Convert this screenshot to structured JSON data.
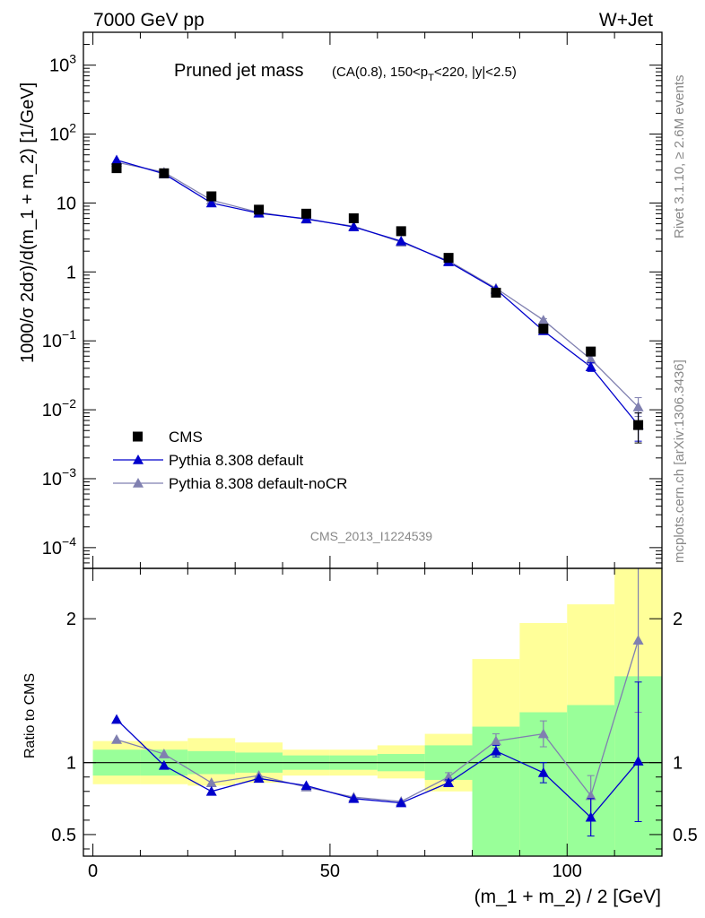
{
  "header": {
    "left": "7000 GeV pp",
    "right": "W+Jet"
  },
  "side": {
    "rivet": "Rivet 3.1.10, ≥ 2.6M events",
    "mcplots": "mcplots.cern.ch [arXiv:1306.3436]"
  },
  "chart_data": [
    {
      "type": "scatter",
      "title_main": "Pruned jet mass",
      "title_sub": "(CA(0.8), 150<p_T<220, |y|<2.5)",
      "title_sub_parts": {
        "a": "(CA(0.8), 150<p",
        "sub": "T",
        "b": "<220, |y|<2.5)"
      },
      "watermark": "CMS_2013_I1224539",
      "ylabel": "1000/σ 2dσ)/d(m_1 + m_2) [1/GeV]",
      "yscale": "log",
      "ylim": [
        5e-05,
        3000
      ],
      "xlim": [
        -2,
        120
      ],
      "ytick_labels": {
        "e3": {
          "base": "10",
          "exp": "3"
        },
        "e2": {
          "base": "10",
          "exp": "2"
        },
        "p10": "10",
        "p1": "1",
        "em1": {
          "base": "10",
          "exp": "−1"
        },
        "em2": {
          "base": "10",
          "exp": "−2"
        },
        "em3": {
          "base": "10",
          "exp": "−3"
        },
        "em4": {
          "base": "10",
          "exp": "−4"
        }
      },
      "x": [
        5,
        15,
        25,
        35,
        45,
        55,
        65,
        75,
        85,
        95,
        105,
        115
      ],
      "series": [
        {
          "name": "CMS",
          "style": "square",
          "color": "#000000",
          "values": [
            32,
            27,
            12.5,
            8,
            7,
            6,
            3.9,
            1.6,
            0.5,
            0.15,
            0.07,
            0.006
          ],
          "err_low": [
            0,
            0,
            0,
            0,
            0,
            0,
            0,
            0,
            0,
            0,
            0,
            0.0027
          ],
          "err_high": [
            0,
            0,
            0,
            0,
            0,
            0,
            0,
            0,
            0,
            0,
            0,
            0.003
          ]
        },
        {
          "name": "Pythia 8.308 default",
          "style": "triangle-line",
          "color": "#0000cc",
          "values": [
            42,
            26.5,
            10,
            7.1,
            5.9,
            4.5,
            2.8,
            1.4,
            0.56,
            0.14,
            0.042,
            0.006
          ],
          "err_low": [
            0,
            0,
            0,
            0,
            0,
            0,
            0,
            0,
            0,
            0,
            0.006,
            0.0025
          ],
          "err_high": [
            0,
            0,
            0,
            0,
            0,
            0,
            0,
            0,
            0,
            0,
            0.006,
            0.003
          ]
        },
        {
          "name": "Pythia 8.308 default-noCR",
          "style": "triangle-line",
          "color": "#8080b0",
          "values": [
            39,
            28,
            11,
            7.3,
            5.8,
            4.6,
            2.7,
            1.45,
            0.58,
            0.2,
            0.054,
            0.011
          ],
          "err_low": [
            0,
            0,
            0,
            0,
            0,
            0,
            0,
            0,
            0,
            0.01,
            0.006,
            0.003
          ],
          "err_high": [
            0,
            0,
            0,
            0,
            0,
            0,
            0,
            0,
            0,
            0.01,
            0.006,
            0.004
          ]
        }
      ]
    },
    {
      "type": "line",
      "ylabel": "Ratio to CMS",
      "xlabel": "(m_1 + m_2) / 2 [GeV]",
      "ylim": [
        0.35,
        2.35
      ],
      "xlim": [
        -2,
        120
      ],
      "yticks": [
        0.5,
        1,
        2
      ],
      "ytick_labels": [
        "0.5",
        "1",
        "2"
      ],
      "xticks": [
        0,
        50,
        100
      ],
      "xtick_labels": [
        "0",
        "50",
        "100"
      ],
      "bands": {
        "bin_edges": [
          0,
          10,
          20,
          30,
          40,
          50,
          60,
          70,
          80,
          90,
          100,
          110,
          120
        ],
        "green_low": [
          0.91,
          0.91,
          0.92,
          0.93,
          0.95,
          0.95,
          0.94,
          0.88,
          0.35,
          0.35,
          0.35,
          0.35
        ],
        "green_high": [
          1.09,
          1.09,
          1.08,
          1.07,
          1.05,
          1.05,
          1.06,
          1.12,
          1.25,
          1.35,
          1.4,
          1.6
        ],
        "yellow_low": [
          0.85,
          0.85,
          0.84,
          0.86,
          0.91,
          0.91,
          0.89,
          0.8,
          0.35,
          0.35,
          0.35,
          0.35
        ],
        "yellow_high": [
          1.15,
          1.15,
          1.17,
          1.14,
          1.09,
          1.09,
          1.12,
          1.2,
          1.72,
          1.97,
          2.1,
          2.35
        ]
      },
      "x": [
        5,
        15,
        25,
        35,
        45,
        55,
        65,
        75,
        85,
        95,
        105,
        115
      ],
      "series": [
        {
          "name": "Pythia 8.308 default",
          "color": "#0000cc",
          "values": [
            1.3,
            0.98,
            0.8,
            0.89,
            0.84,
            0.75,
            0.72,
            0.86,
            1.08,
            0.93,
            0.62,
            1.01
          ],
          "err_low": [
            0,
            0,
            0,
            0,
            0,
            0,
            0,
            0.02,
            0.04,
            0.07,
            0.13,
            0.42
          ],
          "err_high": [
            0,
            0,
            0,
            0,
            0,
            0,
            0,
            0.02,
            0.04,
            0.07,
            0.13,
            0.55
          ]
        },
        {
          "name": "Pythia 8.308 default-noCR",
          "color": "#8080b0",
          "values": [
            1.16,
            1.06,
            0.86,
            0.91,
            0.83,
            0.76,
            0.73,
            0.9,
            1.15,
            1.2,
            0.77,
            1.85
          ],
          "err_low": [
            0,
            0,
            0,
            0,
            0,
            0,
            0,
            0.03,
            0.05,
            0.09,
            0.14,
            0.5
          ],
          "err_high": [
            0,
            0,
            0,
            0,
            0,
            0,
            0,
            0.03,
            0.05,
            0.09,
            0.14,
            0.5
          ]
        }
      ]
    }
  ]
}
